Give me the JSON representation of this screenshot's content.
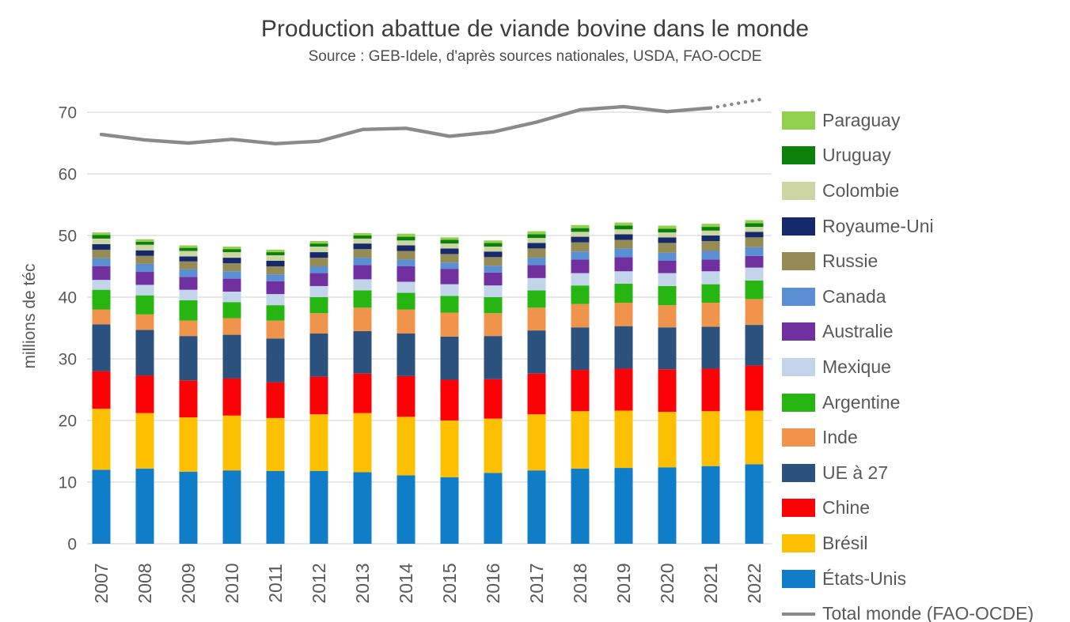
{
  "colors": {
    "background": "#ffffff",
    "grid": "#d9d9d9",
    "axis_text": "#595959",
    "title_text": "#3d3d3d",
    "subtitle_text": "#4d4d4d",
    "total_line": "#8a8a8a"
  },
  "chart_data": {
    "type": "bar",
    "subtype": "stacked-bars-with-line-overlay",
    "title": "Production abattue de viande bovine dans le monde",
    "subtitle": "Source : GEB-Idele, d'après sources nationales, USDA, FAO-OCDE",
    "ylabel": "millions de téc",
    "xlabel": "",
    "y_ticks": [
      0,
      10,
      20,
      30,
      40,
      50,
      60,
      70
    ],
    "ylim": [
      0,
      72.5
    ],
    "grid": true,
    "legend_position": "right",
    "categories": [
      "2007",
      "2008",
      "2009",
      "2010",
      "2011",
      "2012",
      "2013",
      "2014",
      "2015",
      "2016",
      "2017",
      "2018",
      "2019",
      "2020",
      "2021",
      "2022"
    ],
    "series": [
      {
        "name": "États-Unis",
        "color": "#0f7dc8",
        "values": [
          12.0,
          12.2,
          11.7,
          11.9,
          11.8,
          11.8,
          11.6,
          11.1,
          10.8,
          11.5,
          11.9,
          12.2,
          12.3,
          12.4,
          12.6,
          12.9
        ]
      },
      {
        "name": "Brésil",
        "color": "#fdc000",
        "values": [
          9.9,
          9.0,
          8.8,
          8.9,
          8.6,
          9.2,
          9.6,
          9.5,
          9.2,
          8.8,
          9.1,
          9.3,
          9.3,
          9.0,
          8.9,
          8.7
        ]
      },
      {
        "name": "Chine",
        "color": "#fb0306",
        "values": [
          6.1,
          6.1,
          6.0,
          6.0,
          5.8,
          6.1,
          6.4,
          6.6,
          6.6,
          6.4,
          6.6,
          6.7,
          6.8,
          6.9,
          6.9,
          7.3
        ]
      },
      {
        "name": "UE à 27",
        "color": "#2b527e",
        "values": [
          7.6,
          7.4,
          7.2,
          7.1,
          7.1,
          7.0,
          6.9,
          6.9,
          7.0,
          7.0,
          7.0,
          6.9,
          6.9,
          6.8,
          6.8,
          6.6
        ]
      },
      {
        "name": "Inde",
        "color": "#f0944b",
        "values": [
          2.4,
          2.5,
          2.5,
          2.7,
          2.9,
          3.3,
          3.8,
          3.9,
          3.9,
          3.7,
          3.7,
          3.8,
          3.8,
          3.6,
          3.9,
          4.2
        ]
      },
      {
        "name": "Argentine",
        "color": "#27b512",
        "values": [
          3.2,
          3.1,
          3.3,
          2.6,
          2.5,
          2.6,
          2.8,
          2.7,
          2.7,
          2.6,
          2.8,
          3.0,
          3.1,
          3.1,
          3.0,
          3.0
        ]
      },
      {
        "name": "Mexique",
        "color": "#c2d5ea",
        "values": [
          1.6,
          1.7,
          1.7,
          1.7,
          1.8,
          1.8,
          1.8,
          1.8,
          1.9,
          1.9,
          2.0,
          2.0,
          2.0,
          2.1,
          2.1,
          2.1
        ]
      },
      {
        "name": "Australie",
        "color": "#7030a0",
        "values": [
          2.2,
          2.1,
          2.1,
          2.1,
          2.1,
          2.1,
          2.3,
          2.5,
          2.5,
          2.1,
          2.1,
          2.2,
          2.3,
          2.0,
          1.9,
          1.9
        ]
      },
      {
        "name": "Canada",
        "color": "#5b8fd4",
        "values": [
          1.3,
          1.3,
          1.2,
          1.2,
          1.1,
          1.1,
          1.2,
          1.1,
          1.0,
          1.1,
          1.2,
          1.3,
          1.4,
          1.3,
          1.4,
          1.4
        ]
      },
      {
        "name": "Russie",
        "color": "#948b55",
        "values": [
          1.4,
          1.3,
          1.3,
          1.3,
          1.3,
          1.4,
          1.4,
          1.4,
          1.4,
          1.4,
          1.5,
          1.5,
          1.4,
          1.6,
          1.6,
          1.6
        ]
      },
      {
        "name": "Royaume-Uni",
        "color": "#15296b",
        "values": [
          0.9,
          0.9,
          0.8,
          0.9,
          0.9,
          0.9,
          0.9,
          0.9,
          0.9,
          0.9,
          0.9,
          0.9,
          0.9,
          0.9,
          0.9,
          0.9
        ]
      },
      {
        "name": "Colombie",
        "color": "#cbd6a3",
        "values": [
          0.9,
          0.9,
          0.9,
          0.9,
          0.9,
          0.9,
          0.8,
          0.8,
          0.8,
          0.8,
          0.8,
          0.8,
          0.8,
          0.8,
          0.8,
          0.8
        ]
      },
      {
        "name": "Uruguay",
        "color": "#0b800b",
        "values": [
          0.6,
          0.5,
          0.5,
          0.5,
          0.5,
          0.5,
          0.5,
          0.6,
          0.6,
          0.6,
          0.6,
          0.6,
          0.6,
          0.6,
          0.6,
          0.6
        ]
      },
      {
        "name": "Paraguay",
        "color": "#92d050",
        "values": [
          0.4,
          0.4,
          0.4,
          0.4,
          0.4,
          0.4,
          0.4,
          0.5,
          0.4,
          0.4,
          0.5,
          0.5,
          0.5,
          0.5,
          0.5,
          0.5
        ]
      }
    ],
    "line_series": {
      "name": "Total monde (FAO-OCDE)",
      "color": "#8a8a8a",
      "values": [
        66.4,
        65.5,
        65.0,
        65.6,
        64.9,
        65.3,
        67.2,
        67.4,
        66.1,
        66.8,
        68.4,
        70.4,
        70.9,
        70.1,
        70.7,
        71.9
      ],
      "dotted_segment_start_index": 14
    },
    "legend": [
      {
        "label": "Paraguay",
        "color": "#92d050",
        "marker": "box"
      },
      {
        "label": "Uruguay",
        "color": "#0b800b",
        "marker": "box"
      },
      {
        "label": "Colombie",
        "color": "#cbd6a3",
        "marker": "box"
      },
      {
        "label": "Royaume-Uni",
        "color": "#15296b",
        "marker": "box"
      },
      {
        "label": "Russie",
        "color": "#948b55",
        "marker": "box"
      },
      {
        "label": "Canada",
        "color": "#5b8fd4",
        "marker": "box"
      },
      {
        "label": "Australie",
        "color": "#7030a0",
        "marker": "box"
      },
      {
        "label": "Mexique",
        "color": "#c2d5ea",
        "marker": "box"
      },
      {
        "label": "Argentine",
        "color": "#27b512",
        "marker": "box"
      },
      {
        "label": "Inde",
        "color": "#f0944b",
        "marker": "box"
      },
      {
        "label": "UE à 27",
        "color": "#2b527e",
        "marker": "box"
      },
      {
        "label": "Chine",
        "color": "#fb0306",
        "marker": "box"
      },
      {
        "label": "Brésil",
        "color": "#fdc000",
        "marker": "box"
      },
      {
        "label": "États-Unis",
        "color": "#0f7dc8",
        "marker": "box"
      },
      {
        "label": "Total monde (FAO-OCDE)",
        "color": "#8a8a8a",
        "marker": "line"
      }
    ]
  }
}
